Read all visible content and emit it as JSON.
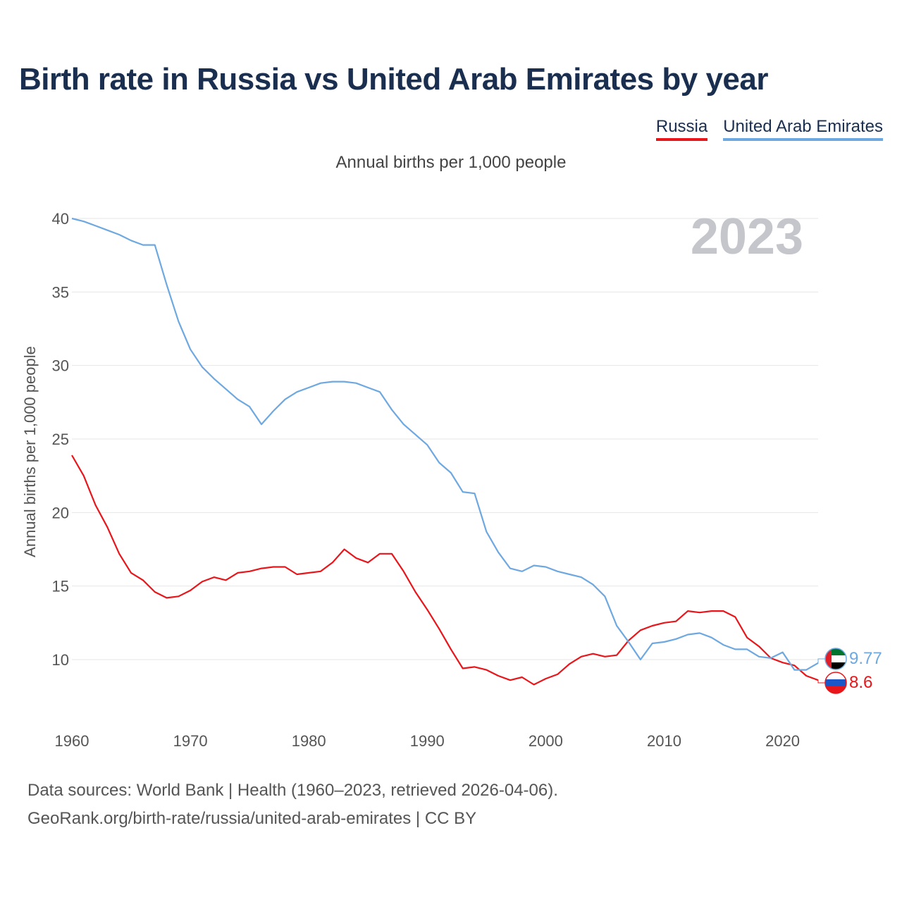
{
  "title": "Birth rate in Russia vs United Arab Emirates by year",
  "subtitle": "Annual births per 1,000 people",
  "source_line1": "Data sources: World Bank | Health (1960–2023, retrieved 2026-04-06).",
  "source_line2": "GeoRank.org/birth-rate/russia/united-arab-emirates | CC BY",
  "year_label": "2023",
  "legend": [
    {
      "label": "Russia",
      "color": "#e8161b"
    },
    {
      "label": "United Arab Emirates",
      "color": "#6ea8e0"
    }
  ],
  "chart_data": {
    "type": "line",
    "title": "Birth rate in Russia vs United Arab Emirates by year",
    "ylabel": "Annual births per 1,000 people",
    "xlabel": "",
    "xlim": [
      1960,
      2023
    ],
    "ylim": [
      5,
      40
    ],
    "y_ticks": [
      10,
      15,
      20,
      25,
      30,
      35,
      40
    ],
    "x_ticks": [
      1960,
      1970,
      1980,
      1990,
      2000,
      2010,
      2020
    ],
    "grid": true,
    "x": [
      1960,
      1961,
      1962,
      1963,
      1964,
      1965,
      1966,
      1967,
      1968,
      1969,
      1970,
      1971,
      1972,
      1973,
      1974,
      1975,
      1976,
      1977,
      1978,
      1979,
      1980,
      1981,
      1982,
      1983,
      1984,
      1985,
      1986,
      1987,
      1988,
      1989,
      1990,
      1991,
      1992,
      1993,
      1994,
      1995,
      1996,
      1997,
      1998,
      1999,
      2000,
      2001,
      2002,
      2003,
      2004,
      2005,
      2006,
      2007,
      2008,
      2009,
      2010,
      2011,
      2012,
      2013,
      2014,
      2015,
      2016,
      2017,
      2018,
      2019,
      2020,
      2021,
      2022,
      2023
    ],
    "series": [
      {
        "name": "Russia",
        "color": "#e8161b",
        "end_label": "8.6",
        "values": [
          23.9,
          22.5,
          20.5,
          19.0,
          17.2,
          15.9,
          15.4,
          14.6,
          14.2,
          14.3,
          14.7,
          15.3,
          15.6,
          15.4,
          15.9,
          16.0,
          16.2,
          16.3,
          16.3,
          15.8,
          15.9,
          16.0,
          16.6,
          17.5,
          16.9,
          16.6,
          17.2,
          17.2,
          16.0,
          14.6,
          13.4,
          12.1,
          10.7,
          9.4,
          9.5,
          9.3,
          8.9,
          8.6,
          8.8,
          8.3,
          8.7,
          9.0,
          9.7,
          10.2,
          10.4,
          10.2,
          10.3,
          11.3,
          12.0,
          12.3,
          12.5,
          12.6,
          13.3,
          13.2,
          13.3,
          13.3,
          12.9,
          11.5,
          10.9,
          10.1,
          9.8,
          9.6,
          8.9,
          8.6
        ]
      },
      {
        "name": "United Arab Emirates",
        "color": "#6ea8e0",
        "end_label": "9.77",
        "values": [
          40.0,
          39.8,
          39.5,
          39.2,
          38.9,
          38.5,
          38.2,
          38.2,
          35.5,
          33.0,
          31.1,
          29.9,
          29.1,
          28.4,
          27.7,
          27.2,
          26.0,
          26.9,
          27.7,
          28.2,
          28.5,
          28.8,
          28.9,
          28.9,
          28.8,
          28.5,
          28.2,
          27.0,
          26.0,
          25.3,
          24.6,
          23.4,
          22.7,
          21.4,
          21.3,
          18.7,
          17.3,
          16.2,
          16.0,
          16.4,
          16.3,
          16.0,
          15.8,
          15.6,
          15.1,
          14.3,
          12.3,
          11.2,
          10.0,
          11.1,
          11.2,
          11.4,
          11.7,
          11.8,
          11.5,
          11.0,
          10.7,
          10.7,
          10.2,
          10.1,
          10.5,
          9.3,
          9.3,
          9.77
        ]
      }
    ]
  }
}
